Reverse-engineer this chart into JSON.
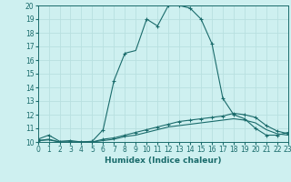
{
  "xlabel": "Humidex (Indice chaleur)",
  "xlim": [
    0,
    23
  ],
  "ylim": [
    10,
    20
  ],
  "xticks": [
    0,
    1,
    2,
    3,
    4,
    5,
    6,
    7,
    8,
    9,
    10,
    11,
    12,
    13,
    14,
    15,
    16,
    17,
    18,
    19,
    20,
    21,
    22,
    23
  ],
  "yticks": [
    10,
    11,
    12,
    13,
    14,
    15,
    16,
    17,
    18,
    19,
    20
  ],
  "background_color": "#cef0f0",
  "line_color": "#1a6b6b",
  "grid_color": "#b8e0e0",
  "line1_x": [
    0,
    1,
    2,
    3,
    4,
    5,
    6,
    7,
    8,
    9,
    10,
    11,
    12,
    13,
    14,
    15,
    16,
    17,
    18,
    19,
    20,
    21,
    22,
    23
  ],
  "line1_y": [
    10.2,
    10.5,
    10.05,
    10.1,
    10.0,
    10.05,
    10.9,
    14.5,
    16.5,
    16.7,
    19.0,
    18.5,
    20.0,
    20.0,
    19.8,
    19.0,
    17.2,
    13.2,
    12.0,
    11.7,
    11.0,
    10.5,
    10.5,
    10.7
  ],
  "line1_markers_x": [
    0,
    1,
    3,
    5,
    6,
    7,
    8,
    10,
    11,
    12,
    13,
    14,
    15,
    16,
    17,
    18,
    19,
    20,
    21,
    22,
    23
  ],
  "line1_markers_y": [
    10.2,
    10.5,
    10.1,
    10.05,
    10.9,
    14.5,
    16.5,
    19.0,
    18.5,
    20.0,
    20.0,
    19.8,
    19.0,
    17.2,
    13.2,
    12.0,
    11.7,
    11.0,
    10.5,
    10.5,
    10.7
  ],
  "line2_x": [
    0,
    1,
    2,
    3,
    4,
    5,
    6,
    7,
    8,
    9,
    10,
    11,
    12,
    13,
    14,
    15,
    16,
    17,
    18,
    19,
    20,
    21,
    22,
    23
  ],
  "line2_y": [
    10.1,
    10.2,
    10.0,
    10.0,
    10.0,
    10.0,
    10.2,
    10.3,
    10.5,
    10.7,
    10.9,
    11.1,
    11.3,
    11.5,
    11.6,
    11.7,
    11.8,
    11.9,
    12.1,
    12.0,
    11.8,
    11.2,
    10.8,
    10.6
  ],
  "line2_markers_x": [
    0,
    1,
    2,
    3,
    4,
    5,
    6,
    7,
    8,
    9,
    10,
    11,
    12,
    13,
    14,
    15,
    16,
    17,
    18,
    19,
    20,
    21,
    22,
    23
  ],
  "line2_markers_y": [
    10.1,
    10.2,
    10.0,
    10.0,
    10.0,
    10.0,
    10.2,
    10.3,
    10.5,
    10.7,
    10.9,
    11.1,
    11.3,
    11.5,
    11.6,
    11.7,
    11.8,
    11.9,
    12.1,
    12.0,
    11.8,
    11.2,
    10.8,
    10.6
  ],
  "line3_x": [
    0,
    1,
    2,
    3,
    4,
    5,
    6,
    7,
    8,
    9,
    10,
    11,
    12,
    13,
    14,
    15,
    16,
    17,
    18,
    19,
    20,
    21,
    22,
    23
  ],
  "line3_y": [
    10.1,
    10.15,
    10.0,
    10.0,
    10.0,
    10.0,
    10.1,
    10.2,
    10.4,
    10.5,
    10.7,
    10.9,
    11.1,
    11.2,
    11.3,
    11.4,
    11.5,
    11.6,
    11.7,
    11.6,
    11.4,
    10.9,
    10.6,
    10.5
  ]
}
